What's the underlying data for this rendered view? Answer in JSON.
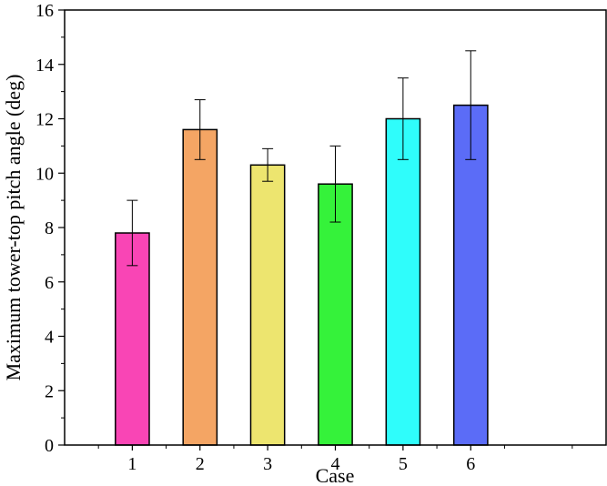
{
  "chart_data": {
    "type": "bar",
    "title": "",
    "xlabel": "Case",
    "ylabel": "Maximum tower-top pitch angle (deg)",
    "categories": [
      "1",
      "2",
      "3",
      "4",
      "5",
      "6"
    ],
    "values": [
      7.8,
      11.6,
      10.3,
      9.6,
      12.0,
      12.5
    ],
    "errors_upper": [
      9.0,
      12.7,
      10.9,
      11.0,
      13.5,
      14.5
    ],
    "errors_lower": [
      6.6,
      10.5,
      9.7,
      8.2,
      10.5,
      10.5
    ],
    "colors": [
      "#f945b5",
      "#f4a564",
      "#ede56f",
      "#35f23a",
      "#2ffdfb",
      "#5b6cf7"
    ],
    "ylim": [
      0,
      16
    ],
    "yticks": [
      "0",
      "2",
      "4",
      "6",
      "8",
      "10",
      "12",
      "14",
      "16"
    ],
    "xlim": [
      0,
      8
    ],
    "grid": false,
    "legend": "none"
  }
}
